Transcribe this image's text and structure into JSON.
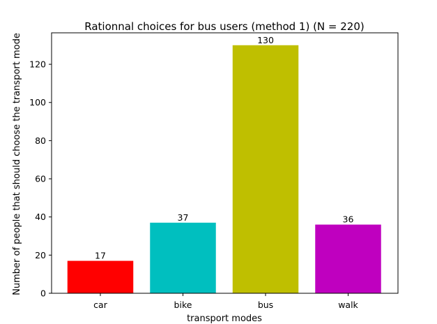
{
  "chart_data": {
    "type": "bar",
    "title": "Rationnal choices for bus users (method 1) (N = 220)",
    "xlabel": "transport modes",
    "ylabel": "Number of people that should choose the transport mode",
    "categories": [
      "car",
      "bike",
      "bus",
      "walk"
    ],
    "values": [
      17,
      37,
      130,
      36
    ],
    "data_labels": [
      "17",
      "37",
      "130",
      "36"
    ],
    "colors": [
      "#ff0000",
      "#00bfbf",
      "#bfbf00",
      "#bf00bf"
    ],
    "ylim": [
      0,
      136.5
    ],
    "yticks": [
      0,
      20,
      40,
      60,
      80,
      100,
      120
    ],
    "ytick_labels": [
      "0",
      "20",
      "40",
      "60",
      "80",
      "100",
      "120"
    ],
    "grid": false,
    "legend": "none"
  }
}
